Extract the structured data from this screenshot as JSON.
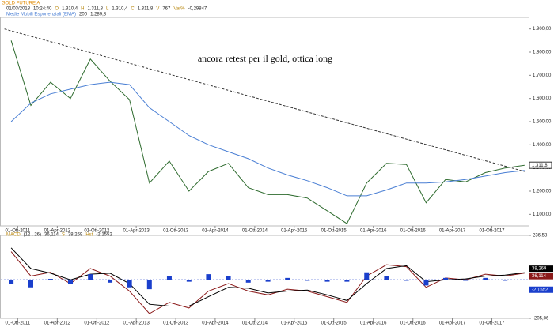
{
  "chart_data": [
    {
      "type": "line",
      "title": "GOLD FUTURE A",
      "info": [
        "01/03/2018",
        "10:24:40"
      ],
      "fields": [
        {
          "label": "O",
          "value": "1.310,4"
        },
        {
          "label": "H",
          "value": "1.311,8"
        },
        {
          "label": "L",
          "value": "1.310,4"
        },
        {
          "label": "C",
          "value": "1.311,8"
        },
        {
          "label": "V",
          "value": "767"
        },
        {
          "label": "Var%",
          "value": "-0,29847"
        }
      ],
      "ema_period": "200",
      "ema_value": "1.289,8",
      "annotation": "ancora retest per il gold, ottica long",
      "x": [
        "2011-09-01",
        "2011-12-01",
        "2012-03-01",
        "2012-06-01",
        "2012-09-01",
        "2012-12-01",
        "2013-03-01",
        "2013-06-01",
        "2013-09-01",
        "2013-12-01",
        "2014-03-01",
        "2014-06-01",
        "2014-09-01",
        "2014-12-01",
        "2015-03-01",
        "2015-06-01",
        "2015-09-01",
        "2015-12-01",
        "2016-03-01",
        "2016-06-01",
        "2016-09-01",
        "2016-12-01",
        "2017-03-01",
        "2017-06-01",
        "2017-09-01",
        "2017-12-01",
        "2018-03-01"
      ],
      "series": [
        {
          "color": "#2e6b2e",
          "values": [
            1850,
            1570,
            1670,
            1600,
            1770,
            1675,
            1595,
            1235,
            1330,
            1200,
            1285,
            1320,
            1215,
            1185,
            1185,
            1170,
            1115,
            1060,
            1235,
            1320,
            1315,
            1150,
            1250,
            1240,
            1280,
            1300,
            1311.8
          ]
        },
        {
          "name": "Medie Mobili Esponenziali (EMA)",
          "color": "#4a7fd4",
          "values": [
            1500,
            1580,
            1620,
            1640,
            1660,
            1670,
            1660,
            1560,
            1500,
            1440,
            1400,
            1370,
            1340,
            1300,
            1270,
            1245,
            1215,
            1180,
            1180,
            1205,
            1235,
            1235,
            1240,
            1250,
            1265,
            1280,
            1289.8
          ]
        }
      ],
      "trendline": {
        "x": [
          "2011-08-01",
          "2018-03-01"
        ],
        "values": [
          1900,
          1285
        ],
        "color": "#333333"
      },
      "xlim": [
        "2011-07-15",
        "2018-03-20"
      ],
      "xticks": [
        {
          "value": "2011-10-01",
          "label": "01-Ott-2011"
        },
        {
          "value": "2012-04-01",
          "label": "01-Apr-2012"
        },
        {
          "value": "2012-10-01",
          "label": "01-Ott-2012"
        },
        {
          "value": "2013-04-01",
          "label": "01-Apr-2013"
        },
        {
          "value": "2013-10-01",
          "label": "01-Ott-2013"
        },
        {
          "value": "2014-04-01",
          "label": "01-Apr-2014"
        },
        {
          "value": "2014-10-01",
          "label": "01-Ott-2014"
        },
        {
          "value": "2015-04-01",
          "label": "01-Apr-2015"
        },
        {
          "value": "2015-10-01",
          "label": "01-Ott-2015"
        },
        {
          "value": "2016-04-01",
          "label": "01-Apr-2016"
        },
        {
          "value": "2016-10-01",
          "label": "01-Ott-2016"
        },
        {
          "value": "2017-04-01",
          "label": "01-Apr-2017"
        },
        {
          "value": "2017-10-01",
          "label": "01-Ott-2017"
        }
      ],
      "ylim": [
        1050,
        1950
      ],
      "yticks": [
        {
          "value": 1100,
          "label": "1.100,00"
        },
        {
          "value": 1200,
          "label": "1.200,00"
        },
        {
          "value": 1300,
          "label": "1.300,00"
        },
        {
          "value": 1400,
          "label": "1.400,00"
        },
        {
          "value": 1500,
          "label": "1.500,00"
        },
        {
          "value": 1600,
          "label": "1.600,00"
        },
        {
          "value": 1700,
          "label": "1.700,00"
        },
        {
          "value": 1800,
          "label": "1.800,00"
        },
        {
          "value": 1900,
          "label": "1.900,00"
        }
      ]
    },
    {
      "type": "line",
      "params": "(12 , 26)",
      "x": [
        "2011-09-01",
        "2011-12-01",
        "2012-03-01",
        "2012-06-01",
        "2012-09-01",
        "2012-12-01",
        "2013-03-01",
        "2013-06-01",
        "2013-09-01",
        "2013-12-01",
        "2014-03-01",
        "2014-06-01",
        "2014-09-01",
        "2014-12-01",
        "2015-03-01",
        "2015-06-01",
        "2015-09-01",
        "2015-12-01",
        "2016-03-01",
        "2016-06-01",
        "2016-09-01",
        "2016-12-01",
        "2017-03-01",
        "2017-06-01",
        "2017-09-01",
        "2017-12-01",
        "2018-03-01"
      ],
      "series": [
        {
          "name": "MACD",
          "color": "#8b1a1a",
          "last_label": "36,114",
          "values": [
            150,
            20,
            40,
            -20,
            60,
            20,
            -60,
            -180,
            -120,
            -150,
            -60,
            -20,
            -60,
            -80,
            -50,
            -60,
            -90,
            -120,
            20,
            80,
            70,
            -40,
            10,
            0,
            30,
            20,
            36.114
          ]
        },
        {
          "name": "S",
          "color": "#000000",
          "last_label": "38,269",
          "values": [
            170,
            60,
            35,
            0,
            30,
            35,
            -20,
            -130,
            -140,
            -140,
            -90,
            -40,
            -45,
            -70,
            -60,
            -55,
            -80,
            -110,
            -20,
            60,
            75,
            -10,
            0,
            5,
            20,
            25,
            38.269
          ]
        },
        {
          "name": "Hst",
          "type": "bar",
          "color": "#1a3fcc",
          "last_label": "-2,1552",
          "values": [
            -20,
            -40,
            5,
            -20,
            30,
            -15,
            -40,
            -50,
            20,
            -10,
            30,
            20,
            -15,
            -10,
            10,
            -5,
            -10,
            -10,
            40,
            20,
            -5,
            -30,
            10,
            -5,
            10,
            -5,
            -2.1552
          ]
        }
      ],
      "xlim": [
        "2011-07-15",
        "2018-03-20"
      ],
      "ylim": [
        -205.06,
        236.58
      ],
      "yticks": [
        {
          "value": -205.06,
          "label": "-205,06"
        },
        {
          "value": 236.58,
          "label": "236,58"
        }
      ]
    }
  ]
}
